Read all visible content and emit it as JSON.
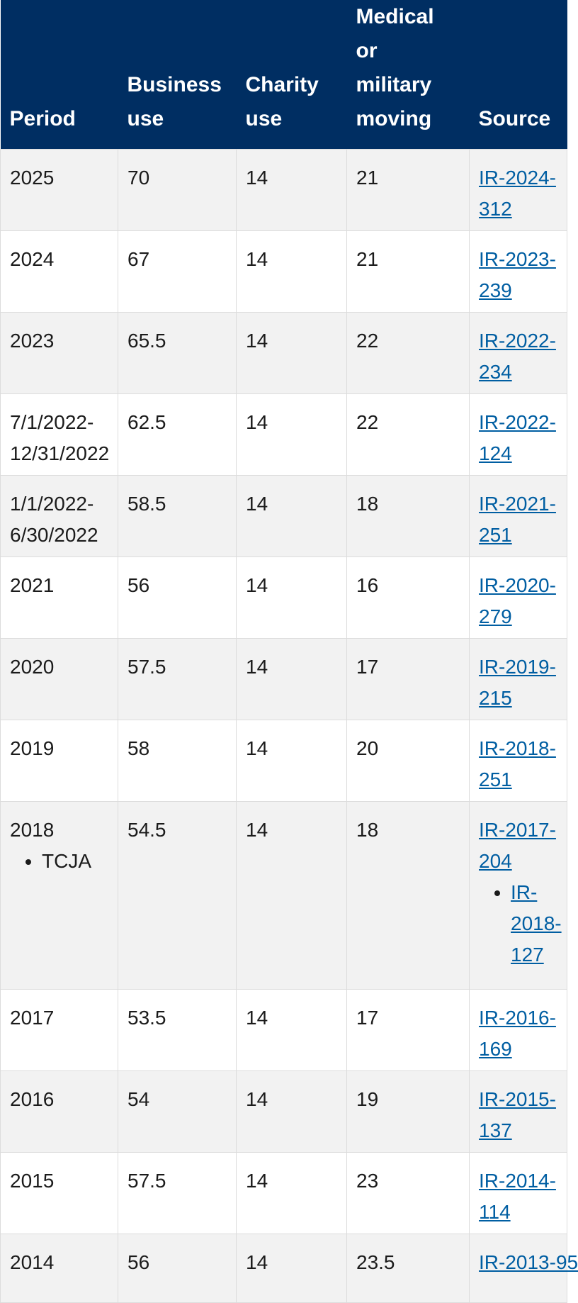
{
  "table": {
    "headers": {
      "period": "Period",
      "business": [
        "Business",
        "use"
      ],
      "charity": [
        "Charity",
        "use"
      ],
      "medical": [
        "Medical",
        "or",
        "military",
        "moving"
      ],
      "source": "Source"
    },
    "rows": [
      {
        "period": [
          "2025"
        ],
        "business": "70",
        "charity": "14",
        "medical": "21",
        "source": [
          "IR-2024-",
          "312"
        ]
      },
      {
        "period": [
          "2024"
        ],
        "business": "67",
        "charity": "14",
        "medical": "21",
        "source": [
          "IR-2023-",
          "239"
        ]
      },
      {
        "period": [
          "2023"
        ],
        "business": "65.5",
        "charity": "14",
        "medical": "22",
        "source": [
          "IR-2022-",
          "234"
        ]
      },
      {
        "period": [
          "7/1/2022-",
          "12/31/2022"
        ],
        "business": "62.5",
        "charity": "14",
        "medical": "22",
        "source": [
          "IR-2022-",
          "124"
        ]
      },
      {
        "period": [
          "1/1/2022-",
          "6/30/2022"
        ],
        "business": "58.5",
        "charity": "14",
        "medical": "18",
        "source": [
          "IR-2021-",
          "251"
        ]
      },
      {
        "period": [
          "2021"
        ],
        "business": "56",
        "charity": "14",
        "medical": "16",
        "source": [
          "IR-2020-",
          "279"
        ]
      },
      {
        "period": [
          "2020"
        ],
        "business": "57.5",
        "charity": "14",
        "medical": "17",
        "source": [
          "IR-2019-",
          "215"
        ]
      },
      {
        "period": [
          "2019"
        ],
        "business": "58",
        "charity": "14",
        "medical": "20",
        "source": [
          "IR-2018-",
          "251"
        ]
      },
      {
        "period": [
          "2018"
        ],
        "period_note": "TCJA",
        "business": "54.5",
        "charity": "14",
        "medical": "18",
        "source": [
          "IR-2017-",
          "204"
        ],
        "source_note": [
          "IR-",
          "2018-",
          "127"
        ]
      },
      {
        "period": [
          "2017"
        ],
        "business": "53.5",
        "charity": "14",
        "medical": "17",
        "source": [
          "IR-2016-",
          "169"
        ]
      },
      {
        "period": [
          "2016"
        ],
        "business": "54",
        "charity": "14",
        "medical": "19",
        "source": [
          "IR-2015-",
          "137"
        ]
      },
      {
        "period": [
          "2015"
        ],
        "business": "57.5",
        "charity": "14",
        "medical": "23",
        "source": [
          "IR-2014-",
          "114"
        ]
      },
      {
        "period": [
          "2014"
        ],
        "business": "56",
        "charity": "14",
        "medical": "23.5",
        "source": [
          "IR-2013-95"
        ]
      }
    ]
  }
}
